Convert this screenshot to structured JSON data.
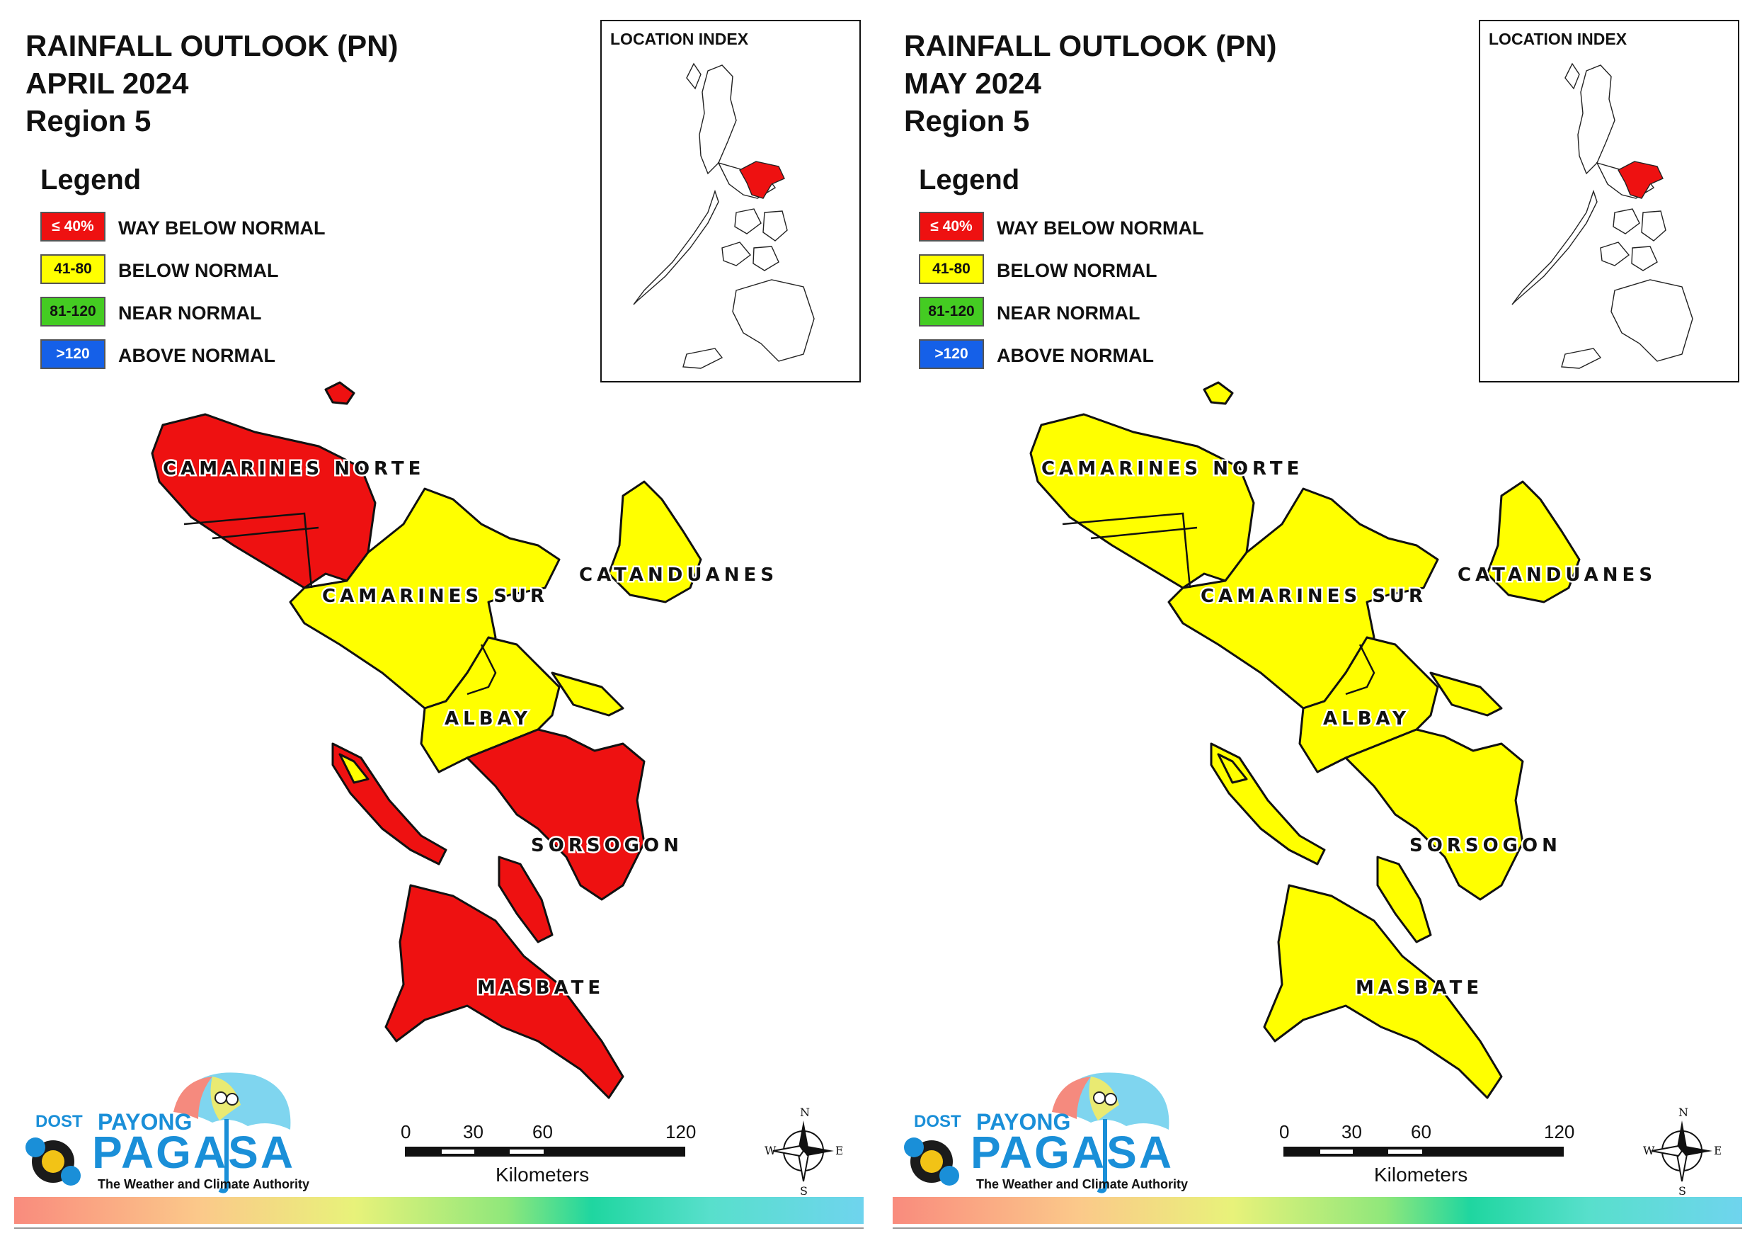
{
  "panels": [
    {
      "title_line1": "RAINFALL OUTLOOK (PN)",
      "title_line2": "APRIL 2024",
      "title_line3": "Region 5",
      "inset_title": "LOCATION INDEX",
      "province_colors": {
        "camarines_norte": "#ee1111",
        "camarines_sur": "#ffff00",
        "catanduanes": "#ffff00",
        "albay": "#ffff00",
        "sorsogon": "#ee1111",
        "masbate": "#ee1111"
      }
    },
    {
      "title_line1": "RAINFALL OUTLOOK (PN)",
      "title_line2": "MAY 2024",
      "title_line3": "Region 5",
      "inset_title": "LOCATION INDEX",
      "province_colors": {
        "camarines_norte": "#ffff00",
        "camarines_sur": "#ffff00",
        "catanduanes": "#ffff00",
        "albay": "#ffff00",
        "sorsogon": "#ffff00",
        "masbate": "#ffff00"
      }
    }
  ],
  "legend": {
    "title": "Legend",
    "items": [
      {
        "range": "≤ 40%",
        "label": "WAY BELOW NORMAL",
        "color": "#ee1111"
      },
      {
        "range": "41-80",
        "label": "BELOW NORMAL",
        "color": "#ffff00"
      },
      {
        "range": "81-120",
        "label": "NEAR NORMAL",
        "color": "#44cc22"
      },
      {
        "range": ">120",
        "label": "ABOVE NORMAL",
        "color": "#1560e8"
      }
    ]
  },
  "provinces": {
    "camarines_norte": "CAMARINES NORTE",
    "camarines_sur": "CAMARINES SUR",
    "catanduanes": "CATANDUANES",
    "albay": "ALBAY",
    "sorsogon": "SORSOGON",
    "masbate": "MASBATE"
  },
  "logo": {
    "dost": "DOST",
    "payong": "PAYONG",
    "pagasa": "PAGASA",
    "tagline": "The Weather and Climate Authority"
  },
  "scale": {
    "ticks": [
      "0",
      "30",
      "60",
      "120"
    ],
    "unit": "Kilometers"
  },
  "compass": {
    "n": "N",
    "e": "E",
    "s": "S",
    "w": "W"
  },
  "colors": {
    "way_below_normal": "#ee1111",
    "below_normal": "#ffff00",
    "near_normal": "#44cc22",
    "above_normal": "#1560e8"
  }
}
